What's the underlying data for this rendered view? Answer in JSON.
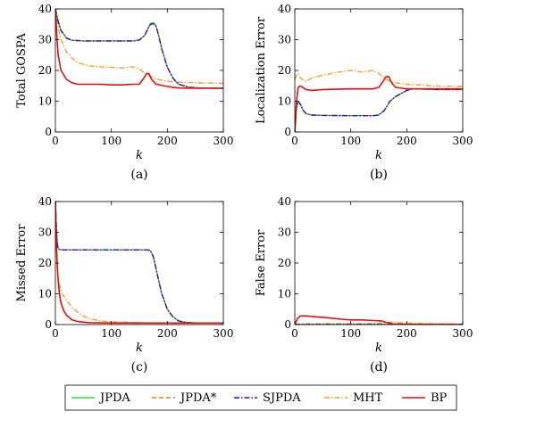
{
  "chart_data": [
    {
      "type": "line",
      "panel_label": "(a)",
      "xlabel": "k",
      "ylabel": "Total GOSPA",
      "xlim": [
        0,
        300
      ],
      "ylim": [
        0,
        40
      ],
      "xticks": [
        0,
        100,
        200,
        300
      ],
      "yticks": [
        0,
        10,
        20,
        30,
        40
      ],
      "grid": false,
      "series": [
        {
          "name": "JPDA",
          "x": [
            0,
            5,
            10,
            20,
            30,
            50,
            100,
            140,
            150,
            160,
            165,
            170,
            175,
            180,
            185,
            190,
            200,
            210,
            220,
            240,
            260,
            300
          ],
          "y": [
            40,
            36,
            33,
            30.5,
            29.8,
            29.6,
            29.6,
            29.6,
            29.9,
            31.5,
            33.5,
            35.3,
            35.6,
            34.5,
            31,
            27,
            21,
            17.5,
            15.5,
            14.5,
            14.3,
            14.2
          ]
        },
        {
          "name": "JPDA*",
          "x": [
            0,
            5,
            10,
            20,
            30,
            50,
            100,
            140,
            150,
            160,
            165,
            170,
            175,
            180,
            185,
            190,
            200,
            210,
            220,
            240,
            260,
            300
          ],
          "y": [
            40,
            36,
            33,
            30.5,
            29.8,
            29.6,
            29.6,
            29.6,
            29.9,
            31.5,
            33.5,
            35,
            35.2,
            34.3,
            31,
            27,
            21,
            17.5,
            15.5,
            14.5,
            14.3,
            14.2
          ]
        },
        {
          "name": "SJPDA",
          "x": [
            0,
            5,
            10,
            20,
            30,
            50,
            100,
            140,
            150,
            160,
            165,
            170,
            175,
            180,
            185,
            190,
            200,
            210,
            220,
            240,
            260,
            300
          ],
          "y": [
            40,
            36,
            33,
            30.5,
            29.8,
            29.6,
            29.6,
            29.6,
            29.9,
            31.5,
            33.5,
            35,
            35.2,
            34.3,
            31,
            27,
            21,
            17.5,
            15.5,
            14.5,
            14.3,
            14.2
          ]
        },
        {
          "name": "MHT",
          "x": [
            0,
            5,
            10,
            20,
            30,
            40,
            60,
            80,
            100,
            120,
            140,
            150,
            160,
            170,
            180,
            200,
            220,
            250,
            300
          ],
          "y": [
            40,
            34,
            30,
            26,
            24,
            22.5,
            21.5,
            21.2,
            21,
            20.8,
            21.2,
            20.5,
            19,
            18,
            17.2,
            16.5,
            16.2,
            16,
            15.8
          ]
        },
        {
          "name": "BP",
          "x": [
            0,
            3,
            5,
            10,
            20,
            30,
            40,
            60,
            80,
            100,
            120,
            140,
            150,
            158,
            163,
            167,
            172,
            180,
            200,
            220,
            250,
            300
          ],
          "y": [
            40,
            30,
            25,
            20,
            17,
            16,
            15.5,
            15.5,
            15.5,
            15.3,
            15.3,
            15.5,
            15.5,
            17.5,
            19,
            19,
            17,
            15.5,
            14.8,
            14.3,
            14.2,
            14.2
          ]
        }
      ]
    },
    {
      "type": "line",
      "panel_label": "(b)",
      "xlabel": "k",
      "ylabel": "Localization Error",
      "xlim": [
        0,
        300
      ],
      "ylim": [
        0,
        40
      ],
      "xticks": [
        0,
        100,
        200,
        300
      ],
      "yticks": [
        0,
        10,
        20,
        30,
        40
      ],
      "grid": false,
      "series": [
        {
          "name": "JPDA",
          "x": [
            0,
            3,
            6,
            10,
            15,
            20,
            30,
            50,
            100,
            140,
            150,
            160,
            170,
            180,
            190,
            200,
            210,
            220,
            250,
            300
          ],
          "y": [
            0,
            8,
            10,
            9,
            7,
            6,
            5.5,
            5.4,
            5.3,
            5.3,
            5.5,
            7,
            10,
            11.5,
            12.5,
            13.5,
            14,
            14,
            13.8,
            13.8
          ]
        },
        {
          "name": "JPDA*",
          "x": [
            0,
            3,
            6,
            10,
            15,
            20,
            30,
            50,
            100,
            140,
            150,
            160,
            170,
            180,
            190,
            200,
            210,
            220,
            250,
            300
          ],
          "y": [
            0,
            8,
            10,
            9,
            7,
            6,
            5.5,
            5.4,
            5.3,
            5.3,
            5.5,
            7,
            10,
            11.5,
            12.5,
            13.5,
            14,
            14,
            13.8,
            13.8
          ]
        },
        {
          "name": "SJPDA",
          "x": [
            0,
            3,
            6,
            10,
            15,
            20,
            30,
            50,
            100,
            140,
            150,
            160,
            170,
            180,
            190,
            200,
            210,
            220,
            250,
            300
          ],
          "y": [
            0,
            8,
            10,
            9,
            7,
            6,
            5.5,
            5.4,
            5.3,
            5.3,
            5.5,
            7,
            10,
            11.5,
            12.5,
            13.5,
            14,
            14,
            13.8,
            13.8
          ]
        },
        {
          "name": "MHT",
          "x": [
            0,
            3,
            6,
            10,
            20,
            30,
            50,
            80,
            100,
            120,
            140,
            150,
            160,
            170,
            180,
            200,
            220,
            250,
            300
          ],
          "y": [
            17,
            18.5,
            19,
            17.5,
            16.5,
            17.5,
            18.5,
            19.5,
            20,
            19.5,
            20,
            19,
            17.5,
            16.5,
            16,
            15.5,
            15.3,
            15,
            14.8
          ]
        },
        {
          "name": "BP",
          "x": [
            0,
            3,
            6,
            10,
            20,
            30,
            50,
            100,
            140,
            150,
            158,
            163,
            168,
            173,
            180,
            200,
            220,
            250,
            300
          ],
          "y": [
            0,
            10,
            14.5,
            15,
            13.8,
            13.5,
            13.8,
            14,
            14,
            14.5,
            16.5,
            18,
            18,
            16,
            14.5,
            14,
            14,
            14,
            14
          ]
        }
      ]
    },
    {
      "type": "line",
      "panel_label": "(c)",
      "xlabel": "k",
      "ylabel": "Missed Error",
      "xlim": [
        0,
        300
      ],
      "ylim": [
        0,
        40
      ],
      "xticks": [
        0,
        100,
        200,
        300
      ],
      "yticks": [
        0,
        10,
        20,
        30,
        40
      ],
      "grid": false,
      "series": [
        {
          "name": "JPDA",
          "x": [
            0,
            2,
            4,
            6,
            10,
            20,
            50,
            100,
            150,
            165,
            170,
            175,
            180,
            185,
            190,
            200,
            210,
            220,
            230,
            240,
            260,
            300
          ],
          "y": [
            40,
            30,
            25.5,
            24.5,
            24.3,
            24.3,
            24.3,
            24.3,
            24.3,
            24.3,
            24,
            22,
            18,
            14,
            10,
            5,
            2.5,
            1.2,
            0.8,
            0.6,
            0.5,
            0.5
          ]
        },
        {
          "name": "JPDA*",
          "x": [
            0,
            2,
            4,
            6,
            10,
            20,
            50,
            100,
            150,
            165,
            170,
            175,
            180,
            185,
            190,
            200,
            210,
            220,
            230,
            240,
            260,
            300
          ],
          "y": [
            40,
            30,
            25.5,
            24.5,
            24.3,
            24.3,
            24.3,
            24.3,
            24.3,
            24.3,
            24,
            22,
            18,
            14,
            10,
            5,
            2.5,
            1.2,
            0.8,
            0.6,
            0.5,
            0.5
          ]
        },
        {
          "name": "SJPDA",
          "x": [
            0,
            2,
            4,
            6,
            10,
            20,
            50,
            100,
            150,
            165,
            170,
            175,
            180,
            185,
            190,
            200,
            210,
            220,
            230,
            240,
            260,
            300
          ],
          "y": [
            40,
            30,
            25.5,
            24.5,
            24.3,
            24.3,
            24.3,
            24.3,
            24.3,
            24.3,
            24,
            22,
            18,
            14,
            10,
            5,
            2.5,
            1.2,
            0.8,
            0.6,
            0.5,
            0.5
          ]
        },
        {
          "name": "MHT",
          "x": [
            0,
            3,
            5,
            10,
            20,
            30,
            40,
            50,
            60,
            80,
            100,
            150,
            200,
            300
          ],
          "y": [
            40,
            20,
            15,
            10.5,
            8,
            5.5,
            4,
            2.8,
            2,
            1.2,
            0.9,
            0.6,
            0.5,
            0.5
          ]
        },
        {
          "name": "BP",
          "x": [
            0,
            2,
            4,
            6,
            8,
            10,
            15,
            20,
            30,
            40,
            60,
            100,
            150,
            200,
            250,
            300
          ],
          "y": [
            40,
            25,
            17,
            12,
            9,
            7,
            4.5,
            3,
            1.5,
            1,
            0.6,
            0.5,
            0.5,
            0.5,
            0.5,
            0.5
          ]
        }
      ]
    },
    {
      "type": "line",
      "panel_label": "(d)",
      "xlabel": "k",
      "ylabel": "False Error",
      "xlim": [
        0,
        300
      ],
      "ylim": [
        0,
        40
      ],
      "xticks": [
        0,
        100,
        200,
        300
      ],
      "yticks": [
        0,
        10,
        20,
        30,
        40
      ],
      "grid": false,
      "series": [
        {
          "name": "JPDA",
          "x": [
            0,
            100,
            200,
            300
          ],
          "y": [
            0,
            0,
            0,
            0
          ]
        },
        {
          "name": "JPDA*",
          "x": [
            0,
            100,
            200,
            300
          ],
          "y": [
            0,
            0,
            0,
            0
          ]
        },
        {
          "name": "SJPDA",
          "x": [
            0,
            100,
            200,
            300
          ],
          "y": [
            0,
            0,
            0,
            0
          ]
        },
        {
          "name": "MHT",
          "x": [
            0,
            10,
            50,
            100,
            150,
            170,
            200,
            250,
            300
          ],
          "y": [
            0,
            0.2,
            0.3,
            0.3,
            0.4,
            0.8,
            0.5,
            0.3,
            0.2
          ]
        },
        {
          "name": "BP",
          "x": [
            0,
            5,
            10,
            20,
            40,
            60,
            80,
            100,
            120,
            140,
            155,
            165,
            175,
            200,
            300
          ],
          "y": [
            0,
            2,
            2.8,
            2.8,
            2.5,
            2.2,
            1.8,
            1.5,
            1.5,
            1.3,
            1.2,
            0.6,
            0.2,
            0.1,
            0
          ]
        }
      ]
    }
  ],
  "legend": {
    "placement": "bottom",
    "entries": [
      {
        "label": "JPDA",
        "color": "#33dd33",
        "dash": "solid"
      },
      {
        "label": "JPDA*",
        "color": "#e8801a",
        "dash": "dashed"
      },
      {
        "label": "SJPDA",
        "color": "#1a1acc",
        "dash": "dashdot"
      },
      {
        "label": "MHT",
        "color": "#f0a030",
        "dash": "dashdot"
      },
      {
        "label": "BP",
        "color": "#e01010",
        "dash": "solid"
      }
    ]
  }
}
